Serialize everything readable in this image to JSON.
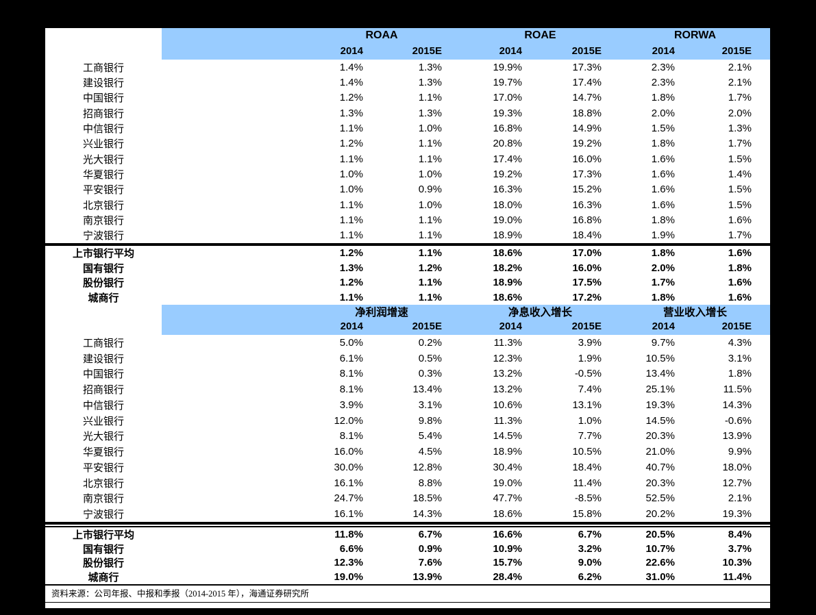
{
  "colors": {
    "header_band_blue": "#99CCFF",
    "page_background": "#000000",
    "panel_background": "#FFFFFF",
    "text": "#000000"
  },
  "sections": [
    {
      "groups": [
        "ROAA",
        "ROAE",
        "RORWA"
      ],
      "year_headers": [
        "2014",
        "2015E",
        "2014",
        "2015E",
        "2014",
        "2015E"
      ],
      "banks": [
        {
          "name": "工商银行",
          "values": [
            "1.4%",
            "1.3%",
            "19.9%",
            "17.3%",
            "2.3%",
            "2.1%"
          ]
        },
        {
          "name": "建设银行",
          "values": [
            "1.4%",
            "1.3%",
            "19.7%",
            "17.4%",
            "2.3%",
            "2.1%"
          ]
        },
        {
          "name": "中国银行",
          "values": [
            "1.2%",
            "1.1%",
            "17.0%",
            "14.7%",
            "1.8%",
            "1.7%"
          ]
        },
        {
          "name": "招商银行",
          "values": [
            "1.3%",
            "1.3%",
            "19.3%",
            "18.8%",
            "2.0%",
            "2.0%"
          ]
        },
        {
          "name": "中信银行",
          "values": [
            "1.1%",
            "1.0%",
            "16.8%",
            "14.9%",
            "1.5%",
            "1.3%"
          ]
        },
        {
          "name": "兴业银行",
          "values": [
            "1.2%",
            "1.1%",
            "20.8%",
            "19.2%",
            "1.8%",
            "1.7%"
          ]
        },
        {
          "name": "光大银行",
          "values": [
            "1.1%",
            "1.1%",
            "17.4%",
            "16.0%",
            "1.6%",
            "1.5%"
          ]
        },
        {
          "name": "华夏银行",
          "values": [
            "1.0%",
            "1.0%",
            "19.2%",
            "17.3%",
            "1.6%",
            "1.4%"
          ]
        },
        {
          "name": "平安银行",
          "values": [
            "1.0%",
            "0.9%",
            "16.3%",
            "15.2%",
            "1.6%",
            "1.5%"
          ]
        },
        {
          "name": "北京银行",
          "values": [
            "1.1%",
            "1.0%",
            "18.0%",
            "16.3%",
            "1.6%",
            "1.5%"
          ]
        },
        {
          "name": "南京银行",
          "values": [
            "1.1%",
            "1.1%",
            "19.0%",
            "16.8%",
            "1.8%",
            "1.6%"
          ]
        },
        {
          "name": "宁波银行",
          "values": [
            "1.1%",
            "1.1%",
            "18.9%",
            "18.4%",
            "1.9%",
            "1.7%"
          ]
        }
      ],
      "summary": [
        {
          "name": "上市银行平均",
          "values": [
            "1.2%",
            "1.1%",
            "18.6%",
            "17.0%",
            "1.8%",
            "1.6%"
          ]
        },
        {
          "name": "国有银行",
          "values": [
            "1.3%",
            "1.2%",
            "18.2%",
            "16.0%",
            "2.0%",
            "1.8%"
          ]
        },
        {
          "name": "股份银行",
          "values": [
            "1.2%",
            "1.1%",
            "18.9%",
            "17.5%",
            "1.7%",
            "1.6%"
          ]
        },
        {
          "name": "城商行",
          "values": [
            "1.1%",
            "1.1%",
            "18.6%",
            "17.2%",
            "1.8%",
            "1.6%"
          ]
        }
      ]
    },
    {
      "groups": [
        "净利润增速",
        "净息收入增长",
        "营业收入增长"
      ],
      "year_headers": [
        "2014",
        "2015E",
        "2014",
        "2015E",
        "2014",
        "2015E"
      ],
      "banks": [
        {
          "name": "工商银行",
          "values": [
            "5.0%",
            "0.2%",
            "11.3%",
            "3.9%",
            "9.7%",
            "4.3%"
          ]
        },
        {
          "name": "建设银行",
          "values": [
            "6.1%",
            "0.5%",
            "12.3%",
            "1.9%",
            "10.5%",
            "3.1%"
          ]
        },
        {
          "name": "中国银行",
          "values": [
            "8.1%",
            "0.3%",
            "13.2%",
            "-0.5%",
            "13.4%",
            "1.8%"
          ]
        },
        {
          "name": "招商银行",
          "values": [
            "8.1%",
            "13.4%",
            "13.2%",
            "7.4%",
            "25.1%",
            "11.5%"
          ]
        },
        {
          "name": "中信银行",
          "values": [
            "3.9%",
            "3.1%",
            "10.6%",
            "13.1%",
            "19.3%",
            "14.3%"
          ]
        },
        {
          "name": "兴业银行",
          "values": [
            "12.0%",
            "9.8%",
            "11.3%",
            "1.0%",
            "14.5%",
            "-0.6%"
          ]
        },
        {
          "name": "光大银行",
          "values": [
            "8.1%",
            "5.4%",
            "14.5%",
            "7.7%",
            "20.3%",
            "13.9%"
          ]
        },
        {
          "name": "华夏银行",
          "values": [
            "16.0%",
            "4.5%",
            "18.9%",
            "10.5%",
            "21.0%",
            "9.9%"
          ]
        },
        {
          "name": "平安银行",
          "values": [
            "30.0%",
            "12.8%",
            "30.4%",
            "18.4%",
            "40.7%",
            "18.0%"
          ]
        },
        {
          "name": "北京银行",
          "values": [
            "16.1%",
            "8.8%",
            "19.0%",
            "11.4%",
            "20.3%",
            "12.7%"
          ]
        },
        {
          "name": "南京银行",
          "values": [
            "24.7%",
            "18.5%",
            "47.7%",
            "-8.5%",
            "52.5%",
            "2.1%"
          ]
        },
        {
          "name": "宁波银行",
          "values": [
            "16.1%",
            "14.3%",
            "18.6%",
            "15.8%",
            "20.2%",
            "19.3%"
          ]
        }
      ],
      "summary": [
        {
          "name": "上市银行平均",
          "values": [
            "11.8%",
            "6.7%",
            "16.6%",
            "6.7%",
            "20.5%",
            "8.4%"
          ]
        },
        {
          "name": "国有银行",
          "values": [
            "6.6%",
            "0.9%",
            "10.9%",
            "3.2%",
            "10.7%",
            "3.7%"
          ]
        },
        {
          "name": "股份银行",
          "values": [
            "12.3%",
            "7.6%",
            "15.7%",
            "9.0%",
            "22.6%",
            "10.3%"
          ]
        },
        {
          "name": "城商行",
          "values": [
            "19.0%",
            "13.9%",
            "28.4%",
            "6.2%",
            "31.0%",
            "11.4%"
          ]
        }
      ]
    }
  ],
  "footer": {
    "source_note": "资料来源：公司年报、中报和季报（2014-2015 年），海通证券研究所"
  }
}
